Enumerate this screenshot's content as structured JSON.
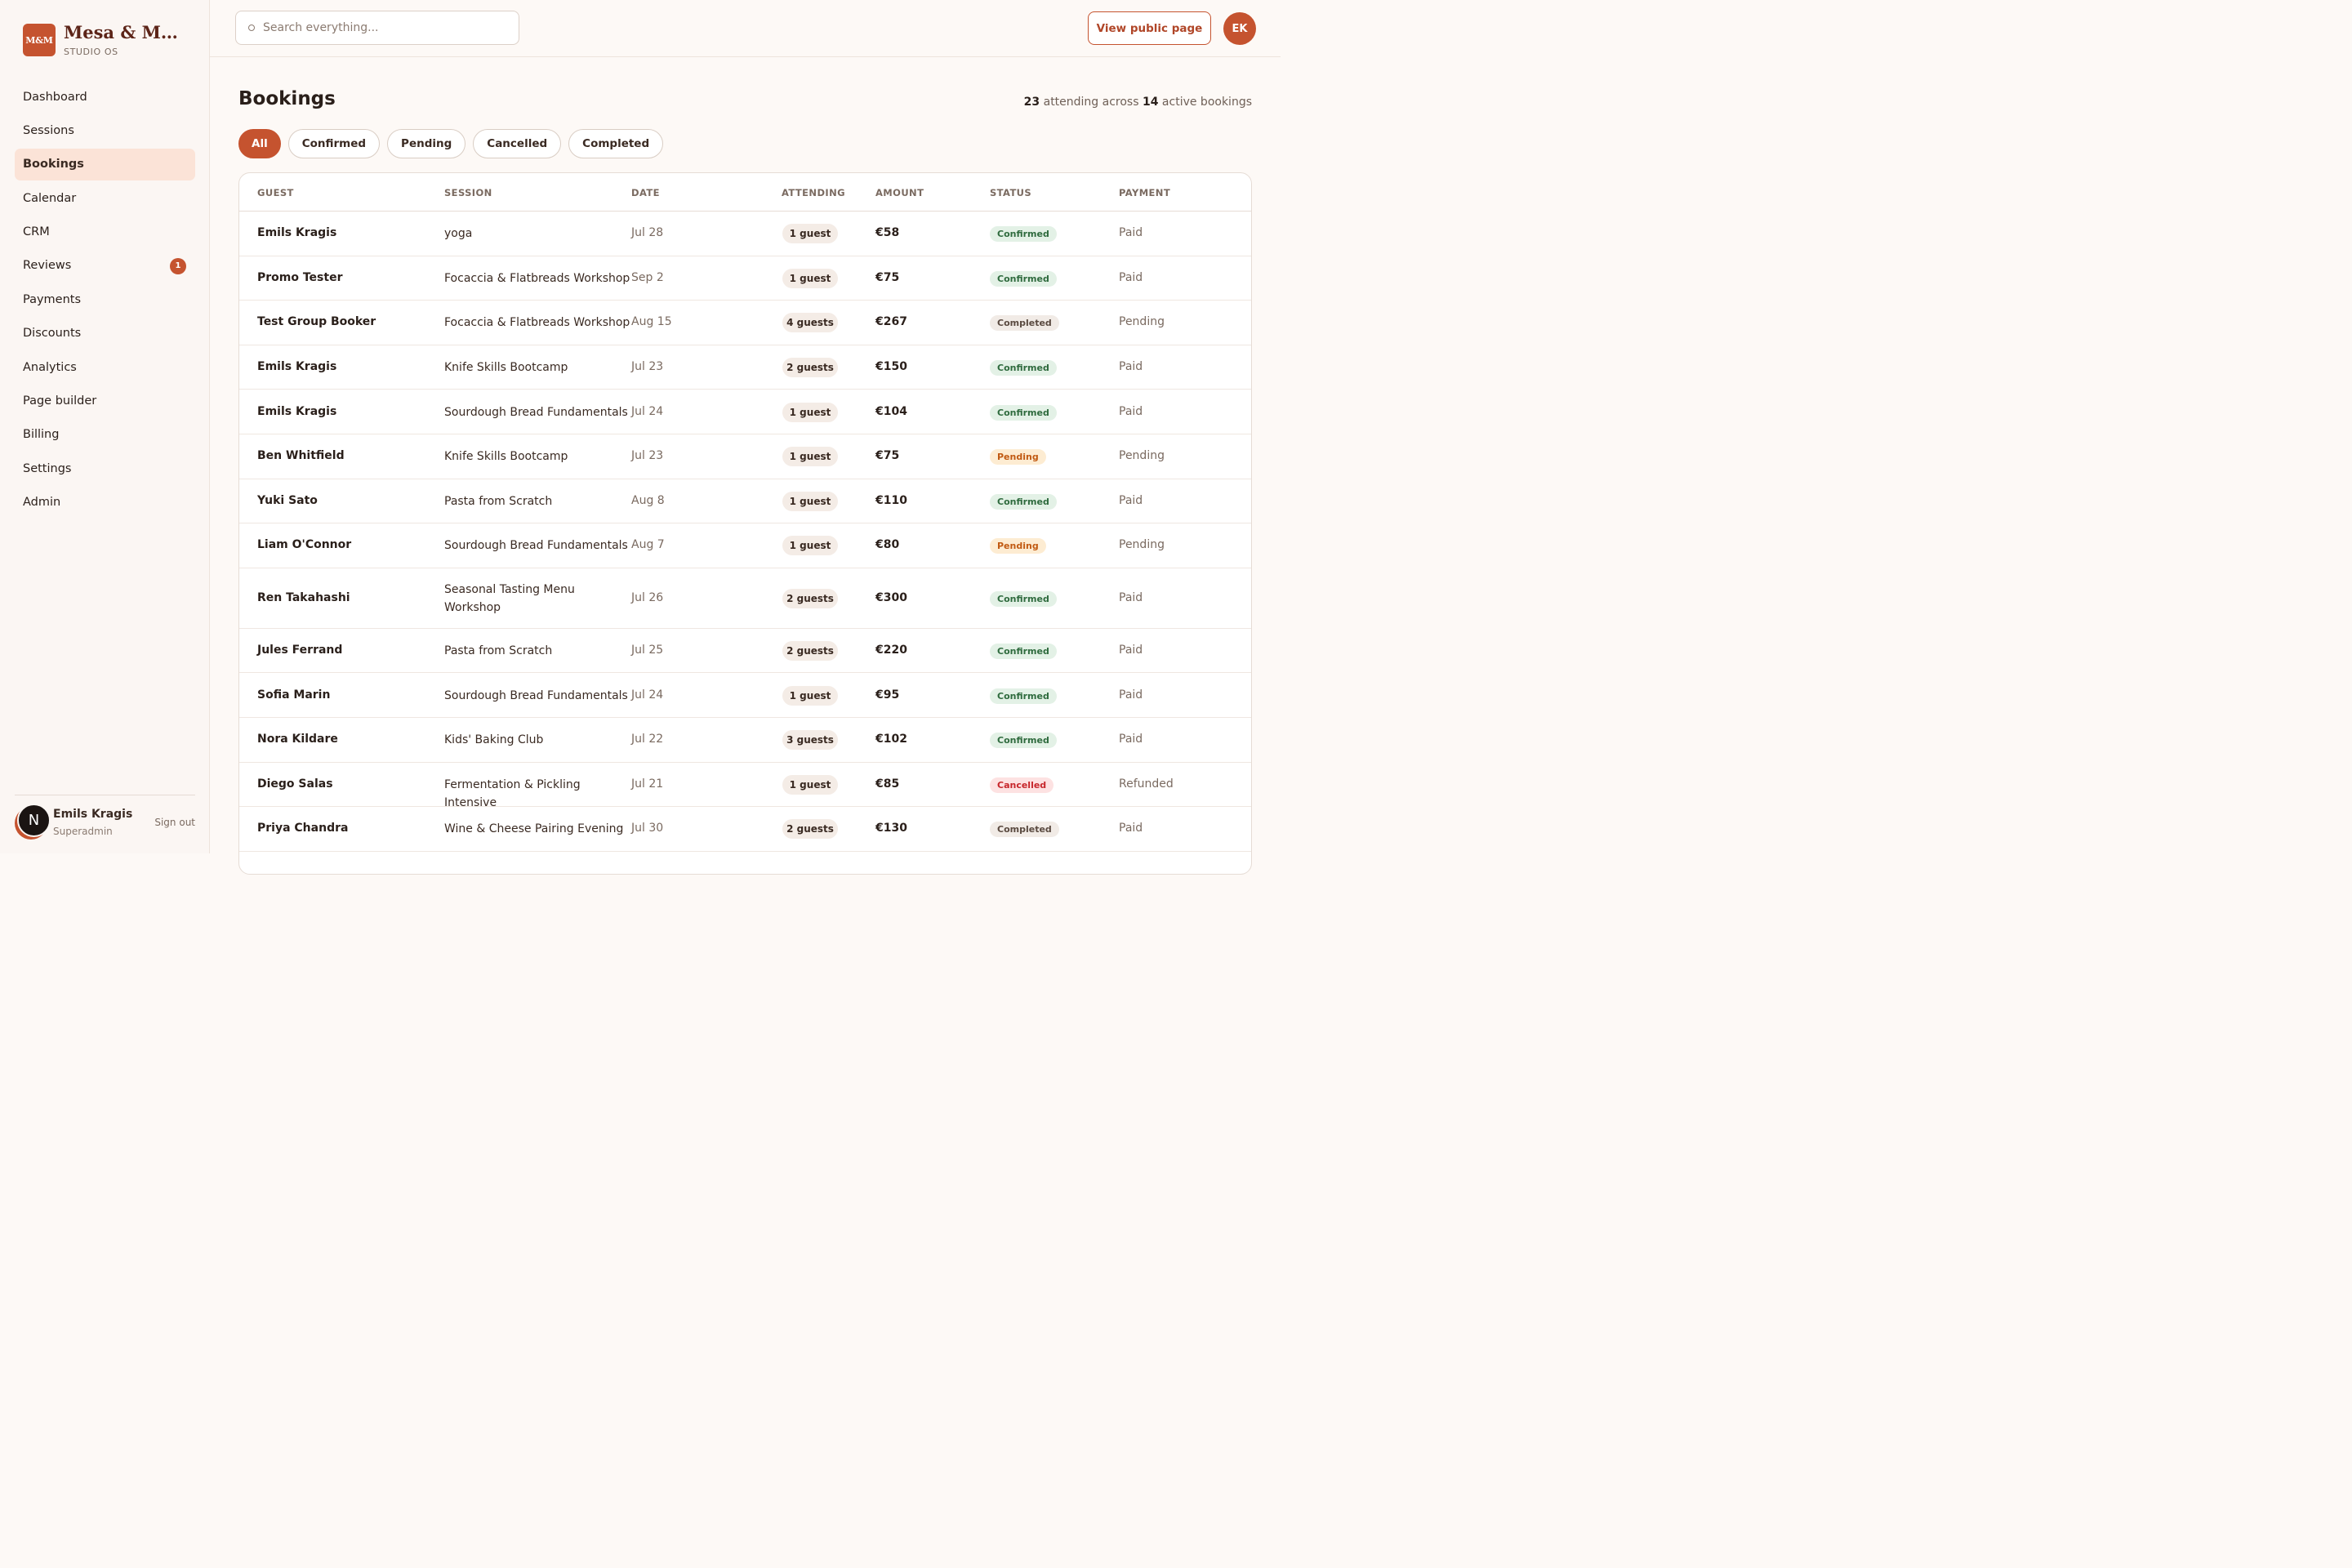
{
  "brand": {
    "logo": "M&M",
    "name": "Mesa & Mor...",
    "sub": "STUDIO OS"
  },
  "nav": [
    {
      "label": "Dashboard"
    },
    {
      "label": "Sessions"
    },
    {
      "label": "Bookings",
      "active": true
    },
    {
      "label": "Calendar"
    },
    {
      "label": "CRM"
    },
    {
      "label": "Reviews",
      "badge": "1"
    },
    {
      "label": "Payments"
    },
    {
      "label": "Discounts"
    },
    {
      "label": "Analytics"
    },
    {
      "label": "Page builder"
    },
    {
      "label": "Billing"
    },
    {
      "label": "Settings"
    },
    {
      "label": "Admin"
    }
  ],
  "user": {
    "initial": "N",
    "name": "Emils Kragis",
    "role": "Superadmin",
    "sign_out": "Sign out"
  },
  "topbar": {
    "search_placeholder": "Search everything...",
    "view_public": "View public page",
    "avatar": "EK"
  },
  "page": {
    "title": "Bookings",
    "summary": {
      "attending": "23",
      "text1": "attending across",
      "active": "14",
      "text2": "active bookings"
    }
  },
  "filters": [
    "All",
    "Confirmed",
    "Pending",
    "Cancelled",
    "Completed"
  ],
  "table": {
    "headers": [
      "GUEST",
      "SESSION",
      "DATE",
      "ATTENDING",
      "AMOUNT",
      "STATUS",
      "PAYMENT"
    ],
    "rows": [
      {
        "guest": "Emils Kragis",
        "session": "yoga",
        "date": "Jul 28",
        "attending": "1 guest",
        "amount": "€58",
        "status": "Confirmed",
        "payment": "Paid"
      },
      {
        "guest": "Promo Tester",
        "session": "Focaccia & Flatbreads Workshop",
        "date": "Sep 2",
        "attending": "1 guest",
        "amount": "€75",
        "status": "Confirmed",
        "payment": "Paid"
      },
      {
        "guest": "Test Group Booker",
        "session": "Focaccia & Flatbreads Workshop",
        "date": "Aug 15",
        "attending": "4 guests",
        "amount": "€267",
        "status": "Completed",
        "payment": "Pending"
      },
      {
        "guest": "Emils Kragis",
        "session": "Knife Skills Bootcamp",
        "date": "Jul 23",
        "attending": "2 guests",
        "amount": "€150",
        "status": "Confirmed",
        "payment": "Paid"
      },
      {
        "guest": "Emils Kragis",
        "session": "Sourdough Bread Fundamentals",
        "date": "Jul 24",
        "attending": "1 guest",
        "amount": "€104",
        "status": "Confirmed",
        "payment": "Paid"
      },
      {
        "guest": "Ben Whitfield",
        "session": "Knife Skills Bootcamp",
        "date": "Jul 23",
        "attending": "1 guest",
        "amount": "€75",
        "status": "Pending",
        "payment": "Pending"
      },
      {
        "guest": "Yuki Sato",
        "session": "Pasta from Scratch",
        "date": "Aug 8",
        "attending": "1 guest",
        "amount": "€110",
        "status": "Confirmed",
        "payment": "Paid"
      },
      {
        "guest": "Liam O'Connor",
        "session": "Sourdough Bread Fundamentals",
        "date": "Aug 7",
        "attending": "1 guest",
        "amount": "€80",
        "status": "Pending",
        "payment": "Pending"
      },
      {
        "guest": "Ren Takahashi",
        "session": "Seasonal Tasting Menu Workshop",
        "date": "Jul 26",
        "attending": "2 guests",
        "amount": "€300",
        "status": "Confirmed",
        "payment": "Paid",
        "tall": true
      },
      {
        "guest": "Jules Ferrand",
        "session": "Pasta from Scratch",
        "date": "Jul 25",
        "attending": "2 guests",
        "amount": "€220",
        "status": "Confirmed",
        "payment": "Paid"
      },
      {
        "guest": "Sofia Marin",
        "session": "Sourdough Bread Fundamentals",
        "date": "Jul 24",
        "attending": "1 guest",
        "amount": "€95",
        "status": "Confirmed",
        "payment": "Paid"
      },
      {
        "guest": "Nora Kildare",
        "session": "Kids' Baking Club",
        "date": "Jul 22",
        "attending": "3 guests",
        "amount": "€102",
        "status": "Confirmed",
        "payment": "Paid"
      },
      {
        "guest": "Diego Salas",
        "session": "Fermentation & Pickling Intensive",
        "date": "Jul 21",
        "attending": "1 guest",
        "amount": "€85",
        "status": "Cancelled",
        "payment": "Refunded"
      },
      {
        "guest": "Priya Chandra",
        "session": "Wine & Cheese Pairing Evening",
        "date": "Jul 30",
        "attending": "2 guests",
        "amount": "€130",
        "status": "Completed",
        "payment": "Paid"
      }
    ]
  },
  "colors": {
    "accent": "#c5532f",
    "brand_text": "#5c2418",
    "active_nav_bg": "#fbe3d7"
  }
}
